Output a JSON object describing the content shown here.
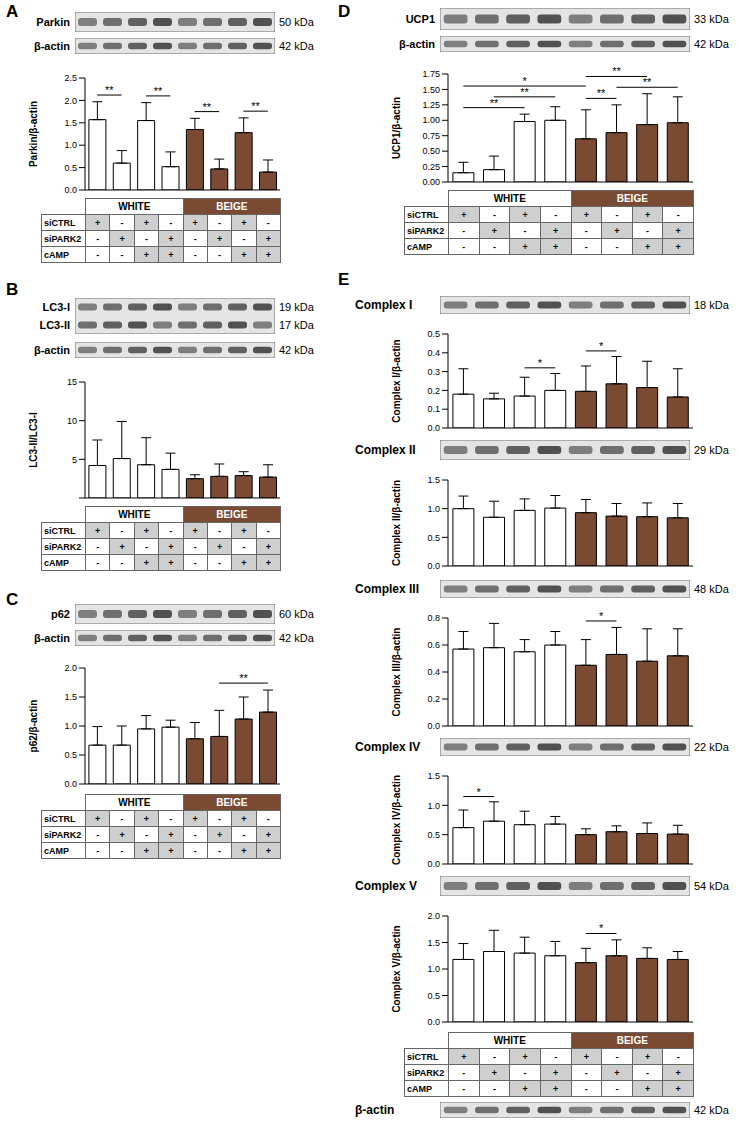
{
  "chart_data": [
    {
      "type": "bar",
      "panel": "A",
      "blots": [
        {
          "labels": [
            "Parkin"
          ],
          "kda": [
            "50 kDa"
          ]
        },
        {
          "labels": [
            "β-actin"
          ],
          "kda": [
            "42 kDa"
          ]
        }
      ],
      "y_label": "Parkin/β-actin",
      "categories": [
        null,
        null,
        null,
        null,
        null,
        null,
        null,
        null
      ],
      "values": [
        1.57,
        0.6,
        1.55,
        0.52,
        1.35,
        0.47,
        1.28,
        0.4
      ],
      "error": [
        0.4,
        0.28,
        0.4,
        0.33,
        0.25,
        0.22,
        0.33,
        0.27
      ],
      "colors": [
        "#ffffff",
        "#ffffff",
        "#ffffff",
        "#ffffff",
        "#7a4a32",
        "#7a4a32",
        "#7a4a32",
        "#7a4a32"
      ],
      "ylim": [
        0,
        2.5
      ],
      "yticks": [
        {
          "value": 0,
          "label": "0.0"
        },
        {
          "value": 0.5,
          "label": "0.5"
        },
        {
          "value": 1,
          "label": "1.0"
        },
        {
          "value": 1.5,
          "label": "1.5"
        },
        {
          "value": 2,
          "label": "2.0"
        },
        {
          "value": 2.5,
          "label": "2.5"
        }
      ],
      "grid": false,
      "significance": [
        {
          "from": 0,
          "to": 1,
          "label": "**"
        },
        {
          "from": 2,
          "to": 3,
          "label": "**"
        },
        {
          "from": 4,
          "to": 5,
          "label": "**"
        },
        {
          "from": 6,
          "to": 7,
          "label": "**"
        }
      ]
    },
    {
      "type": "bar",
      "panel": "B",
      "blots": [
        {
          "labels": [
            "LC3-I",
            "LC3-II"
          ],
          "kda": [
            "19 kDa",
            "17 kDa"
          ]
        },
        {
          "labels": [
            "β-actin"
          ],
          "kda": [
            "42 kDa"
          ]
        }
      ],
      "y_label": "LC3-II/LC3-I",
      "categories": [
        null,
        null,
        null,
        null,
        null,
        null,
        null,
        null
      ],
      "values": [
        4.2,
        5.1,
        4.3,
        3.7,
        2.5,
        2.8,
        2.9,
        2.7
      ],
      "error": [
        3.3,
        4.8,
        3.5,
        2.1,
        0.5,
        1.6,
        0.5,
        1.6
      ],
      "colors": [
        "#ffffff",
        "#ffffff",
        "#ffffff",
        "#ffffff",
        "#7a4a32",
        "#7a4a32",
        "#7a4a32",
        "#7a4a32"
      ],
      "ylim": [
        0,
        15
      ],
      "yticks": [
        0,
        5,
        10,
        15
      ],
      "grid": false,
      "significance": []
    },
    {
      "type": "bar",
      "panel": "C",
      "blots": [
        {
          "labels": [
            "p62"
          ],
          "kda": [
            "60 kDa"
          ]
        },
        {
          "labels": [
            "β-actin"
          ],
          "kda": [
            "42 kDa"
          ]
        }
      ],
      "y_label": "p62/β-actin",
      "categories": [
        null,
        null,
        null,
        null,
        null,
        null,
        null,
        null
      ],
      "values": [
        0.67,
        0.67,
        0.95,
        0.98,
        0.78,
        0.82,
        1.12,
        1.24
      ],
      "error": [
        0.32,
        0.33,
        0.23,
        0.12,
        0.28,
        0.45,
        0.38,
        0.38
      ],
      "colors": [
        "#ffffff",
        "#ffffff",
        "#ffffff",
        "#ffffff",
        "#7a4a32",
        "#7a4a32",
        "#7a4a32",
        "#7a4a32"
      ],
      "ylim": [
        0,
        2
      ],
      "yticks": [
        {
          "value": 0,
          "label": "0.0"
        },
        {
          "value": 0.5,
          "label": "0.5"
        },
        {
          "value": 1,
          "label": "1.0"
        },
        {
          "value": 1.5,
          "label": "1.5"
        },
        {
          "value": 2,
          "label": "2.0"
        }
      ],
      "grid": false,
      "significance": [
        {
          "from": 5,
          "to": 7,
          "label": "**"
        }
      ]
    },
    {
      "type": "bar",
      "panel": "D",
      "blots": [
        {
          "labels": [
            "UCP1"
          ],
          "kda": [
            "33 kDa"
          ]
        },
        {
          "labels": [
            "β-actin"
          ],
          "kda": [
            "42 kDa"
          ]
        }
      ],
      "y_label": "UCP1/β-actin",
      "categories": [
        null,
        null,
        null,
        null,
        null,
        null,
        null,
        null
      ],
      "values": [
        0.15,
        0.2,
        0.98,
        1.0,
        0.7,
        0.8,
        0.93,
        0.96
      ],
      "error": [
        0.17,
        0.22,
        0.12,
        0.22,
        0.47,
        0.45,
        0.5,
        0.42
      ],
      "colors": [
        "#ffffff",
        "#ffffff",
        "#ffffff",
        "#ffffff",
        "#7a4a32",
        "#7a4a32",
        "#7a4a32",
        "#7a4a32"
      ],
      "ylim": [
        0,
        1.75
      ],
      "yticks": [
        {
          "value": 0,
          "label": "0.00"
        },
        {
          "value": 0.25,
          "label": "0.25"
        },
        {
          "value": 0.5,
          "label": "0.50"
        },
        {
          "value": 0.75,
          "label": "0.75"
        },
        {
          "value": 1,
          "label": "1.00"
        },
        {
          "value": 1.25,
          "label": "1.25"
        },
        {
          "value": 1.5,
          "label": "1.50"
        },
        {
          "value": 1.75,
          "label": "1.75"
        }
      ],
      "grid": false,
      "significance": [
        {
          "from": 0,
          "to": 2,
          "label": "**"
        },
        {
          "from": 1,
          "to": 3,
          "label": "**"
        },
        {
          "from": 4,
          "to": 5,
          "label": "**"
        },
        {
          "from": 5,
          "to": 7,
          "label": "**"
        },
        {
          "from": 4,
          "to": 6,
          "label": "**"
        },
        {
          "from": 0,
          "to": 4,
          "label": "*"
        }
      ]
    },
    {
      "type": "bar",
      "panel": "E",
      "blots": [
        {
          "labels": [
            "Complex I"
          ],
          "kda": [
            "18 kDa"
          ]
        }
      ],
      "y_label": "Complex I/β-actin",
      "categories": [
        null,
        null,
        null,
        null,
        null,
        null,
        null,
        null
      ],
      "values": [
        0.18,
        0.155,
        0.17,
        0.2,
        0.195,
        0.235,
        0.215,
        0.165
      ],
      "error": [
        0.135,
        0.03,
        0.1,
        0.09,
        0.135,
        0.145,
        0.14,
        0.15
      ],
      "colors": [
        "#ffffff",
        "#ffffff",
        "#ffffff",
        "#ffffff",
        "#7a4a32",
        "#7a4a32",
        "#7a4a32",
        "#7a4a32"
      ],
      "ylim": [
        0,
        0.5
      ],
      "yticks": [
        {
          "value": 0,
          "label": "0.0"
        },
        0.1,
        0.2,
        0.3,
        0.4,
        0.5
      ],
      "grid": false,
      "significance": [
        {
          "from": 2,
          "to": 3,
          "label": "*"
        },
        {
          "from": 4,
          "to": 5,
          "label": "*"
        }
      ]
    },
    {
      "type": "bar",
      "blots": [
        {
          "labels": [
            "Complex II"
          ],
          "kda": [
            "29 kDa"
          ]
        }
      ],
      "y_label": "Complex II/β-actin",
      "categories": [
        null,
        null,
        null,
        null,
        null,
        null,
        null,
        null
      ],
      "values": [
        1.0,
        0.85,
        0.97,
        1.01,
        0.93,
        0.87,
        0.86,
        0.84
      ],
      "error": [
        0.22,
        0.28,
        0.2,
        0.22,
        0.23,
        0.22,
        0.24,
        0.25
      ],
      "colors": [
        "#ffffff",
        "#ffffff",
        "#ffffff",
        "#ffffff",
        "#7a4a32",
        "#7a4a32",
        "#7a4a32",
        "#7a4a32"
      ],
      "ylim": [
        0,
        1.5
      ],
      "yticks": [
        {
          "value": 0,
          "label": "0.0"
        },
        0.5,
        {
          "value": 1,
          "label": "1.0"
        },
        1.5
      ],
      "grid": false,
      "significance": []
    },
    {
      "type": "bar",
      "blots": [
        {
          "labels": [
            "Complex III"
          ],
          "kda": [
            "48 kDa"
          ]
        }
      ],
      "y_label": "Complex III/β-actin",
      "categories": [
        null,
        null,
        null,
        null,
        null,
        null,
        null,
        null
      ],
      "values": [
        0.57,
        0.58,
        0.55,
        0.6,
        0.45,
        0.53,
        0.48,
        0.52
      ],
      "error": [
        0.13,
        0.18,
        0.09,
        0.1,
        0.19,
        0.2,
        0.24,
        0.2
      ],
      "colors": [
        "#ffffff",
        "#ffffff",
        "#ffffff",
        "#ffffff",
        "#7a4a32",
        "#7a4a32",
        "#7a4a32",
        "#7a4a32"
      ],
      "ylim": [
        0,
        0.8
      ],
      "yticks": [
        {
          "value": 0,
          "label": "0.0"
        },
        0.2,
        0.4,
        0.6,
        0.8
      ],
      "grid": false,
      "significance": [
        {
          "from": 4,
          "to": 5,
          "label": "*"
        }
      ]
    },
    {
      "type": "bar",
      "blots": [
        {
          "labels": [
            "Complex IV"
          ],
          "kda": [
            "22 kDa"
          ]
        }
      ],
      "y_label": "Complex IV/β-actin",
      "categories": [
        null,
        null,
        null,
        null,
        null,
        null,
        null,
        null
      ],
      "values": [
        0.62,
        0.73,
        0.67,
        0.68,
        0.5,
        0.55,
        0.52,
        0.51
      ],
      "error": [
        0.3,
        0.33,
        0.23,
        0.13,
        0.1,
        0.1,
        0.18,
        0.15
      ],
      "colors": [
        "#ffffff",
        "#ffffff",
        "#ffffff",
        "#ffffff",
        "#7a4a32",
        "#7a4a32",
        "#7a4a32",
        "#7a4a32"
      ],
      "ylim": [
        0,
        1.5
      ],
      "yticks": [
        {
          "value": 0,
          "label": "0.0"
        },
        0.5,
        {
          "value": 1,
          "label": "1.0"
        },
        1.5
      ],
      "grid": false,
      "significance": [
        {
          "from": 0,
          "to": 1,
          "label": "*"
        }
      ]
    },
    {
      "type": "bar",
      "blots": [
        {
          "labels": [
            "Complex V"
          ],
          "kda": [
            "54 kDa"
          ]
        }
      ],
      "y_label": "Complex V/β-actin",
      "categories": [
        null,
        null,
        null,
        null,
        null,
        null,
        null,
        null
      ],
      "values": [
        1.18,
        1.33,
        1.3,
        1.25,
        1.12,
        1.25,
        1.2,
        1.18
      ],
      "error": [
        0.3,
        0.4,
        0.3,
        0.27,
        0.27,
        0.3,
        0.2,
        0.15
      ],
      "colors": [
        "#ffffff",
        "#ffffff",
        "#ffffff",
        "#ffffff",
        "#7a4a32",
        "#7a4a32",
        "#7a4a32",
        "#7a4a32"
      ],
      "ylim": [
        0,
        2
      ],
      "yticks": [
        {
          "value": 0,
          "label": "0.0"
        },
        0.5,
        {
          "value": 1,
          "label": "1.0"
        },
        1.5,
        {
          "value": 2,
          "label": "2.0"
        }
      ],
      "grid": false,
      "significance": [
        {
          "from": 4,
          "to": 5,
          "label": "*"
        }
      ]
    }
  ],
  "table": {
    "header": [
      "WHITE",
      "BEIGE"
    ],
    "rows": [
      {
        "label": "siCTRL",
        "cells": [
          "+",
          "-",
          "+",
          "-",
          "+",
          "-",
          "+",
          "-"
        ]
      },
      {
        "label": "siPARK2",
        "cells": [
          "-",
          "+",
          "-",
          "+",
          "-",
          "+",
          "-",
          "+"
        ]
      },
      {
        "label": "cAMP",
        "cells": [
          "-",
          "-",
          "+",
          "+",
          "-",
          "-",
          "+",
          "+"
        ]
      }
    ]
  },
  "loading_control": {
    "labels": [
      "β-actin"
    ],
    "kda": [
      "42 kDa"
    ]
  }
}
